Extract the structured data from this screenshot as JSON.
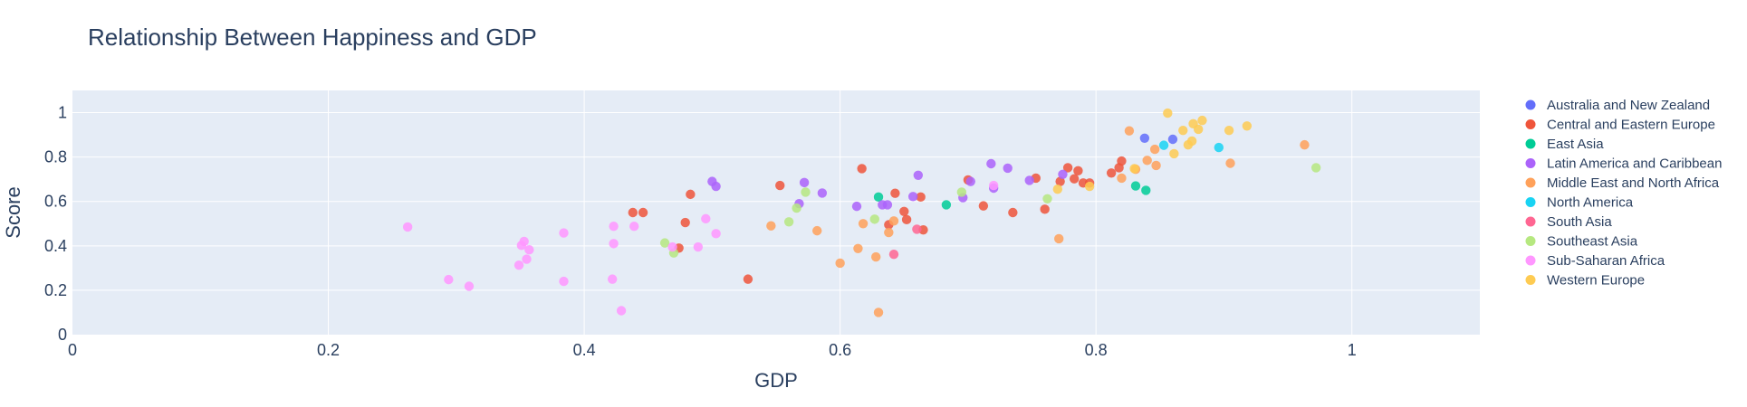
{
  "chart_data": {
    "type": "scatter",
    "title": "Relationship Between Happiness and GDP",
    "xlabel": "GDP",
    "ylabel": "Score",
    "xlim": [
      0,
      1.1
    ],
    "ylim": [
      0,
      1.1
    ],
    "x_ticks": [
      0,
      0.2,
      0.4,
      0.6,
      0.8,
      1
    ],
    "x_tick_labels": [
      "0",
      "0.2",
      "0.4",
      "0.6",
      "0.8",
      "1"
    ],
    "y_ticks": [
      0,
      0.2,
      0.4,
      0.6,
      0.8,
      1
    ],
    "y_tick_labels": [
      "0",
      "0.2",
      "0.4",
      "0.6",
      "0.8",
      "1"
    ],
    "grid": true,
    "legend_position": "right",
    "plot_background": "#e5ecf6",
    "series": [
      {
        "name": "Australia and New Zealand",
        "color": "#636efa",
        "points": [
          [
            0.838,
            0.885
          ],
          [
            0.86,
            0.88
          ]
        ]
      },
      {
        "name": "Central and Eastern Europe",
        "color": "#ef553b",
        "points": [
          [
            0.438,
            0.55
          ],
          [
            0.446,
            0.55
          ],
          [
            0.483,
            0.632
          ],
          [
            0.479,
            0.505
          ],
          [
            0.474,
            0.39
          ],
          [
            0.528,
            0.25
          ],
          [
            0.553,
            0.672
          ],
          [
            0.617,
            0.748
          ],
          [
            0.638,
            0.495
          ],
          [
            0.643,
            0.637
          ],
          [
            0.65,
            0.555
          ],
          [
            0.652,
            0.518
          ],
          [
            0.663,
            0.62
          ],
          [
            0.665,
            0.472
          ],
          [
            0.7,
            0.697
          ],
          [
            0.712,
            0.58
          ],
          [
            0.735,
            0.55
          ],
          [
            0.753,
            0.705
          ],
          [
            0.76,
            0.565
          ],
          [
            0.772,
            0.69
          ],
          [
            0.778,
            0.752
          ],
          [
            0.783,
            0.702
          ],
          [
            0.786,
            0.738
          ],
          [
            0.79,
            0.683
          ],
          [
            0.795,
            0.683
          ],
          [
            0.812,
            0.728
          ],
          [
            0.818,
            0.752
          ],
          [
            0.82,
            0.782
          ]
        ]
      },
      {
        "name": "East Asia",
        "color": "#00cc96",
        "points": [
          [
            0.63,
            0.62
          ],
          [
            0.683,
            0.585
          ],
          [
            0.831,
            0.67
          ],
          [
            0.839,
            0.65
          ]
        ]
      },
      {
        "name": "Latin America and Caribbean",
        "color": "#ab63fa",
        "points": [
          [
            0.5,
            0.69
          ],
          [
            0.503,
            0.668
          ],
          [
            0.568,
            0.59
          ],
          [
            0.572,
            0.685
          ],
          [
            0.586,
            0.638
          ],
          [
            0.613,
            0.578
          ],
          [
            0.633,
            0.585
          ],
          [
            0.637,
            0.585
          ],
          [
            0.657,
            0.622
          ],
          [
            0.661,
            0.718
          ],
          [
            0.696,
            0.617
          ],
          [
            0.702,
            0.69
          ],
          [
            0.718,
            0.77
          ],
          [
            0.72,
            0.66
          ],
          [
            0.731,
            0.75
          ],
          [
            0.748,
            0.695
          ],
          [
            0.774,
            0.722
          ]
        ]
      },
      {
        "name": "Middle East and North Africa",
        "color": "#ffa15a",
        "points": [
          [
            0.546,
            0.49
          ],
          [
            0.582,
            0.468
          ],
          [
            0.6,
            0.322
          ],
          [
            0.614,
            0.388
          ],
          [
            0.618,
            0.5
          ],
          [
            0.628,
            0.35
          ],
          [
            0.63,
            0.1
          ],
          [
            0.638,
            0.46
          ],
          [
            0.642,
            0.512
          ],
          [
            0.771,
            0.432
          ],
          [
            0.82,
            0.705
          ],
          [
            0.826,
            0.918
          ],
          [
            0.831,
            0.745
          ],
          [
            0.84,
            0.785
          ],
          [
            0.846,
            0.835
          ],
          [
            0.847,
            0.762
          ],
          [
            0.905,
            0.772
          ],
          [
            0.963,
            0.855
          ]
        ]
      },
      {
        "name": "North America",
        "color": "#19d3f3",
        "points": [
          [
            0.853,
            0.853
          ],
          [
            0.896,
            0.843
          ]
        ]
      },
      {
        "name": "South Asia",
        "color": "#ff6692",
        "points": [
          [
            0.642,
            0.362
          ],
          [
            0.66,
            0.475
          ]
        ]
      },
      {
        "name": "Southeast Asia",
        "color": "#b6e880",
        "points": [
          [
            0.463,
            0.413
          ],
          [
            0.47,
            0.368
          ],
          [
            0.56,
            0.508
          ],
          [
            0.566,
            0.57
          ],
          [
            0.573,
            0.642
          ],
          [
            0.627,
            0.52
          ],
          [
            0.695,
            0.642
          ],
          [
            0.762,
            0.612
          ],
          [
            0.972,
            0.752
          ]
        ]
      },
      {
        "name": "Sub-Saharan Africa",
        "color": "#ff97ff",
        "points": [
          [
            0.262,
            0.485
          ],
          [
            0.294,
            0.248
          ],
          [
            0.31,
            0.218
          ],
          [
            0.349,
            0.313
          ],
          [
            0.351,
            0.402
          ],
          [
            0.353,
            0.42
          ],
          [
            0.355,
            0.34
          ],
          [
            0.357,
            0.382
          ],
          [
            0.384,
            0.458
          ],
          [
            0.384,
            0.24
          ],
          [
            0.423,
            0.488
          ],
          [
            0.423,
            0.41
          ],
          [
            0.422,
            0.25
          ],
          [
            0.429,
            0.108
          ],
          [
            0.439,
            0.488
          ],
          [
            0.469,
            0.395
          ],
          [
            0.489,
            0.395
          ],
          [
            0.495,
            0.522
          ],
          [
            0.503,
            0.455
          ],
          [
            0.72,
            0.672
          ]
        ]
      },
      {
        "name": "Western Europe",
        "color": "#fecb52",
        "points": [
          [
            0.77,
            0.655
          ],
          [
            0.795,
            0.668
          ],
          [
            0.83,
            0.748
          ],
          [
            0.856,
            0.998
          ],
          [
            0.861,
            0.815
          ],
          [
            0.868,
            0.92
          ],
          [
            0.872,
            0.855
          ],
          [
            0.875,
            0.872
          ],
          [
            0.876,
            0.95
          ],
          [
            0.88,
            0.925
          ],
          [
            0.883,
            0.965
          ],
          [
            0.904,
            0.92
          ],
          [
            0.918,
            0.94
          ]
        ]
      }
    ]
  }
}
